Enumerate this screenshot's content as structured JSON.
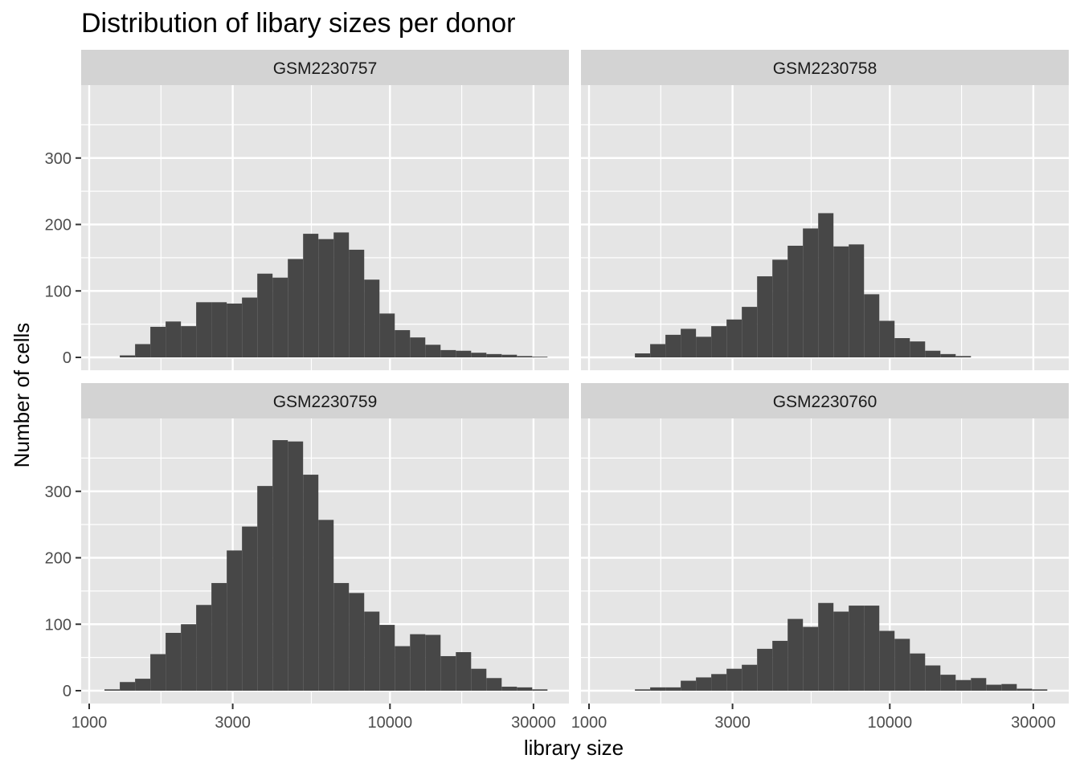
{
  "chart_data": {
    "type": "bar",
    "title": "Distribution of libary sizes per donor",
    "xlabel": "library size",
    "ylabel": "Number of cells",
    "x_scale": "log10",
    "xlim": [
      1000,
      37000
    ],
    "ylim": [
      0,
      400
    ],
    "x_ticks": [
      1000,
      3000,
      10000,
      30000
    ],
    "x_tick_labels": [
      "1000",
      "3000",
      "10000",
      "30000"
    ],
    "y_ticks": [
      0,
      100,
      200,
      300
    ],
    "y_tick_labels": [
      "0",
      "100",
      "200",
      "300"
    ],
    "bin_edges": [
      1000,
      1124,
      1264,
      1421,
      1597,
      1795,
      2018,
      2268,
      2549,
      2866,
      3221,
      3621,
      4070,
      4575,
      5142,
      5780,
      6497,
      7303,
      8209,
      9227,
      10371,
      11658,
      13104,
      14729,
      16557,
      18610,
      20918,
      23513,
      26429,
      29707,
      33392,
      37534
    ],
    "colors": {
      "bar": "#474747",
      "panel_bg": "#e5e5e5",
      "strip_bg": "#d3d3d3",
      "grid": "#ffffff",
      "tick": "#333333"
    },
    "panels": [
      {
        "name": "GSM2230757",
        "values": [
          0,
          0,
          3,
          20,
          46,
          54,
          47,
          83,
          83,
          81,
          90,
          126,
          120,
          148,
          186,
          178,
          188,
          162,
          117,
          66,
          41,
          30,
          19,
          11,
          10,
          7,
          5,
          4,
          2,
          1,
          0
        ]
      },
      {
        "name": "GSM2230758",
        "values": [
          0,
          0,
          0,
          6,
          20,
          34,
          43,
          31,
          47,
          57,
          76,
          122,
          147,
          168,
          194,
          217,
          167,
          170,
          95,
          55,
          29,
          24,
          10,
          5,
          2,
          0,
          0,
          0,
          0,
          0,
          0
        ]
      },
      {
        "name": "GSM2230759",
        "values": [
          0,
          2,
          13,
          18,
          55,
          87,
          100,
          129,
          162,
          211,
          247,
          308,
          377,
          375,
          325,
          257,
          162,
          147,
          119,
          99,
          67,
          85,
          84,
          52,
          58,
          33,
          19,
          6,
          5,
          2,
          0
        ]
      },
      {
        "name": "GSM2230760",
        "values": [
          0,
          0,
          0,
          2,
          5,
          5,
          15,
          20,
          25,
          33,
          39,
          63,
          75,
          108,
          96,
          132,
          119,
          128,
          128,
          90,
          78,
          56,
          38,
          24,
          16,
          19,
          9,
          10,
          3,
          2,
          0
        ]
      }
    ]
  }
}
